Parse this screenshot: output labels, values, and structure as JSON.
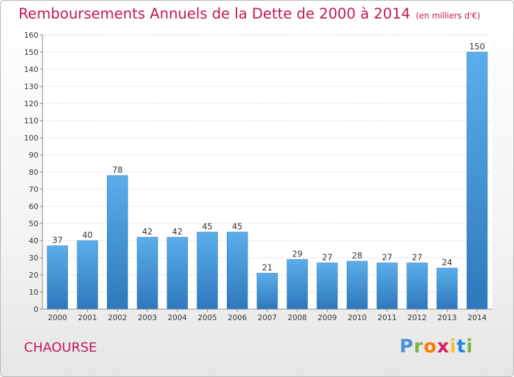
{
  "chart_data": {
    "type": "bar",
    "title": "Remboursements Annuels de la Dette de 2000 à 2014",
    "unit": "(en milliers d'€)",
    "categories": [
      "2000",
      "2001",
      "2002",
      "2003",
      "2004",
      "2005",
      "2006",
      "2007",
      "2008",
      "2009",
      "2010",
      "2011",
      "2012",
      "2013",
      "2014"
    ],
    "values": [
      37,
      40,
      78,
      42,
      42,
      45,
      45,
      21,
      29,
      27,
      28,
      27,
      27,
      24,
      150
    ],
    "ylim": [
      0,
      160
    ],
    "yticks": [
      0,
      10,
      20,
      30,
      40,
      50,
      60,
      70,
      80,
      90,
      100,
      110,
      120,
      130,
      140,
      150,
      160
    ],
    "grid": true,
    "legend": "none",
    "bar_color": "#3a8fd8"
  },
  "footer": {
    "commune": "CHAOURSE",
    "logo_letters": [
      {
        "ch": "P",
        "color": "#4a90d9"
      },
      {
        "ch": "r",
        "color": "#7cb342"
      },
      {
        "ch": "o",
        "color": "#f57c00"
      },
      {
        "ch": "x",
        "color": "#d81b60"
      },
      {
        "ch": "i",
        "color": "#fbc02d"
      },
      {
        "ch": "t",
        "color": "#1e88e5"
      },
      {
        "ch": "i",
        "color": "#7cb342"
      }
    ]
  }
}
